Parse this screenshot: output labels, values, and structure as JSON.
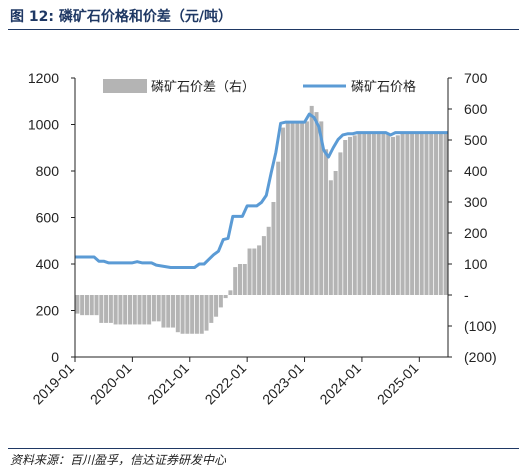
{
  "figure": {
    "title": "图 12:  磷矿石价格和价差（元/吨）",
    "source": "资料来源：百川盈孚，信达证券研发中心"
  },
  "colors": {
    "price_line": "#5b9bd5",
    "spread_bar": "#b4b4b4",
    "header": "#1f3864"
  },
  "chart_data": {
    "type": "bar+line",
    "x_ticks": [
      "2019-01",
      "2020-01",
      "2021-01",
      "2022-01",
      "2023-01",
      "2024-01",
      "2025-01"
    ],
    "x_range": [
      "2019-01",
      "2025-07"
    ],
    "y_left": {
      "ticks": [
        "0",
        "200",
        "400",
        "600",
        "800",
        "1000",
        "1200"
      ],
      "ylim": [
        0,
        1200
      ]
    },
    "y_right": {
      "ticks": [
        "(200)",
        "(100)",
        "-",
        "100",
        "200",
        "300",
        "400",
        "500",
        "600",
        "700"
      ],
      "ylim": [
        -200,
        700
      ]
    },
    "grid": false,
    "legend_position": "top",
    "series": [
      {
        "name": "磷矿石价差（右）",
        "kind": "bar",
        "axis": "right",
        "points": [
          [
            "2019-01-01",
            -60
          ],
          [
            "2019-02-01",
            -65
          ],
          [
            "2019-03-01",
            -65
          ],
          [
            "2019-04-01",
            -65
          ],
          [
            "2019-05-01",
            -65
          ],
          [
            "2019-06-01",
            -90
          ],
          [
            "2019-07-01",
            -90
          ],
          [
            "2019-08-01",
            -90
          ],
          [
            "2019-09-01",
            -95
          ],
          [
            "2019-10-01",
            -95
          ],
          [
            "2019-11-01",
            -95
          ],
          [
            "2019-12-01",
            -95
          ],
          [
            "2020-01-01",
            -95
          ],
          [
            "2020-02-01",
            -95
          ],
          [
            "2020-03-01",
            -95
          ],
          [
            "2020-04-01",
            -95
          ],
          [
            "2020-05-01",
            -85
          ],
          [
            "2020-06-01",
            -85
          ],
          [
            "2020-07-01",
            -105
          ],
          [
            "2020-08-01",
            -105
          ],
          [
            "2020-09-01",
            -105
          ],
          [
            "2020-10-01",
            -120
          ],
          [
            "2020-11-01",
            -125
          ],
          [
            "2020-12-01",
            -125
          ],
          [
            "2021-01-01",
            -125
          ],
          [
            "2021-02-01",
            -125
          ],
          [
            "2021-03-01",
            -125
          ],
          [
            "2021-04-01",
            -115
          ],
          [
            "2021-05-01",
            -90
          ],
          [
            "2021-06-01",
            -70
          ],
          [
            "2021-07-01",
            -40
          ],
          [
            "2021-08-01",
            -10
          ],
          [
            "2021-09-01",
            15
          ],
          [
            "2021-10-01",
            90
          ],
          [
            "2021-11-01",
            100
          ],
          [
            "2021-12-01",
            100
          ],
          [
            "2022-01-01",
            150
          ],
          [
            "2022-02-01",
            150
          ],
          [
            "2022-03-01",
            160
          ],
          [
            "2022-04-01",
            190
          ],
          [
            "2022-05-01",
            220
          ],
          [
            "2022-06-01",
            300
          ],
          [
            "2022-07-01",
            430
          ],
          [
            "2022-08-01",
            540
          ],
          [
            "2022-09-01",
            560
          ],
          [
            "2022-10-01",
            560
          ],
          [
            "2022-11-01",
            560
          ],
          [
            "2022-12-01",
            560
          ],
          [
            "2023-01-01",
            560
          ],
          [
            "2023-02-01",
            610
          ],
          [
            "2023-03-01",
            590
          ],
          [
            "2023-04-01",
            560
          ],
          [
            "2023-05-01",
            470
          ],
          [
            "2023-06-01",
            370
          ],
          [
            "2023-07-01",
            400
          ],
          [
            "2023-08-01",
            460
          ],
          [
            "2023-09-01",
            500
          ],
          [
            "2023-10-01",
            510
          ],
          [
            "2023-11-01",
            515
          ],
          [
            "2023-12-01",
            520
          ],
          [
            "2024-01-01",
            520
          ],
          [
            "2024-02-01",
            520
          ],
          [
            "2024-03-01",
            520
          ],
          [
            "2024-04-01",
            520
          ],
          [
            "2024-05-01",
            520
          ],
          [
            "2024-06-01",
            520
          ],
          [
            "2024-07-01",
            510
          ],
          [
            "2024-08-01",
            515
          ],
          [
            "2024-09-01",
            520
          ],
          [
            "2024-10-01",
            520
          ],
          [
            "2024-11-01",
            520
          ],
          [
            "2024-12-01",
            520
          ],
          [
            "2025-01-01",
            520
          ],
          [
            "2025-02-01",
            520
          ],
          [
            "2025-03-01",
            520
          ],
          [
            "2025-04-01",
            520
          ],
          [
            "2025-05-01",
            520
          ],
          [
            "2025-06-01",
            520
          ]
        ]
      },
      {
        "name": "磷矿石价格",
        "kind": "line",
        "axis": "left",
        "points": [
          [
            "2019-01-01",
            430
          ],
          [
            "2019-05-01",
            430
          ],
          [
            "2019-06-01",
            412
          ],
          [
            "2019-07-01",
            412
          ],
          [
            "2019-08-01",
            405
          ],
          [
            "2019-12-01",
            405
          ],
          [
            "2020-01-01",
            405
          ],
          [
            "2020-02-01",
            410
          ],
          [
            "2020-03-01",
            405
          ],
          [
            "2020-05-01",
            405
          ],
          [
            "2020-06-01",
            395
          ],
          [
            "2020-09-01",
            385
          ],
          [
            "2020-12-01",
            385
          ],
          [
            "2021-02-01",
            385
          ],
          [
            "2021-03-01",
            400
          ],
          [
            "2021-04-01",
            400
          ],
          [
            "2021-05-01",
            420
          ],
          [
            "2021-06-01",
            440
          ],
          [
            "2021-07-01",
            455
          ],
          [
            "2021-08-01",
            505
          ],
          [
            "2021-09-01",
            510
          ],
          [
            "2021-10-01",
            605
          ],
          [
            "2021-11-01",
            605
          ],
          [
            "2021-12-01",
            605
          ],
          [
            "2022-01-01",
            650
          ],
          [
            "2022-02-01",
            650
          ],
          [
            "2022-03-01",
            650
          ],
          [
            "2022-04-01",
            665
          ],
          [
            "2022-05-01",
            695
          ],
          [
            "2022-06-01",
            790
          ],
          [
            "2022-07-01",
            880
          ],
          [
            "2022-08-01",
            1005
          ],
          [
            "2022-09-01",
            1010
          ],
          [
            "2022-10-01",
            1010
          ],
          [
            "2022-11-01",
            1010
          ],
          [
            "2022-12-01",
            1010
          ],
          [
            "2023-01-01",
            1010
          ],
          [
            "2023-02-01",
            1045
          ],
          [
            "2023-03-01",
            1030
          ],
          [
            "2023-04-01",
            990
          ],
          [
            "2023-05-01",
            890
          ],
          [
            "2023-06-01",
            860
          ],
          [
            "2023-07-01",
            900
          ],
          [
            "2023-08-01",
            935
          ],
          [
            "2023-09-01",
            955
          ],
          [
            "2023-10-01",
            960
          ],
          [
            "2023-11-01",
            960
          ],
          [
            "2023-12-01",
            965
          ],
          [
            "2024-01-01",
            965
          ],
          [
            "2024-06-01",
            965
          ],
          [
            "2024-07-01",
            955
          ],
          [
            "2024-08-01",
            965
          ],
          [
            "2024-12-01",
            965
          ],
          [
            "2025-01-01",
            965
          ],
          [
            "2025-07-01",
            965
          ]
        ]
      }
    ]
  }
}
